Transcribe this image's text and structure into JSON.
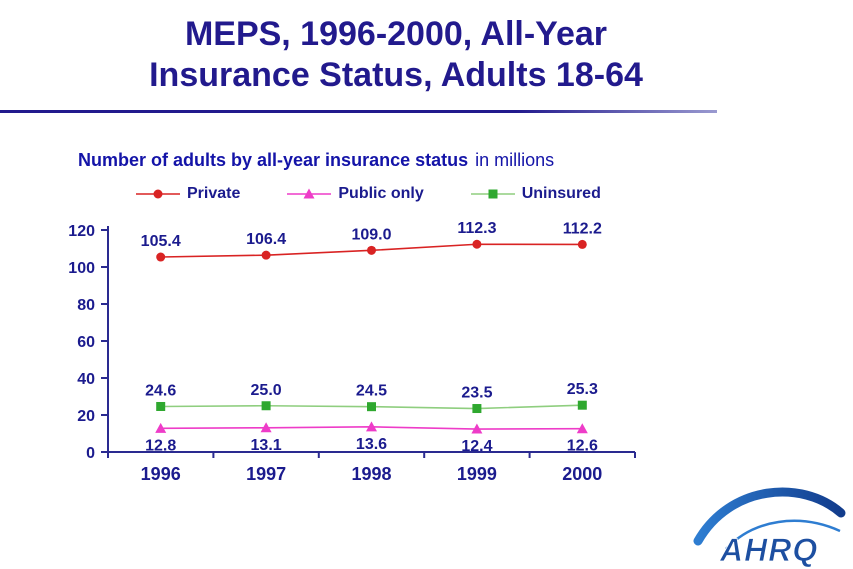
{
  "slide": {
    "title_line1": "MEPS, 1996-2000, All-Year",
    "title_line2": "Insurance Status, Adults 18-64",
    "subtitle": "Number of adults by all-year insurance status",
    "subtitle_unit": "in millions",
    "logo_text": "AHRQ"
  },
  "colors": {
    "title": "#221a8d",
    "subtitle": "#1414a8",
    "axis_text": "#1b1b8e",
    "axis_line": "#2a2a90",
    "rule_start": "#221a8d",
    "rule_end": "#9a9ad0",
    "logo_blue": "#1d4fa1",
    "logo_light": "#2e7dd1",
    "logo_dark": "#123c8c"
  },
  "chart_data": {
    "type": "line",
    "title": "Number of adults by all-year insurance status in millions",
    "categories": [
      "1996",
      "1997",
      "1998",
      "1999",
      "2000"
    ],
    "series": [
      {
        "name": "Private",
        "marker": "circle",
        "color": "#d92323",
        "line_color": "#d92323",
        "values": [
          105.4,
          106.4,
          109.0,
          112.3,
          112.2
        ],
        "label_position": "above"
      },
      {
        "name": "Public only",
        "marker": "triangle",
        "color": "#ee3cc8",
        "line_color": "#ee3cc8",
        "values": [
          12.8,
          13.1,
          13.6,
          12.4,
          12.6
        ],
        "label_position": "below"
      },
      {
        "name": "Uninsured",
        "marker": "square",
        "color": "#2fa82f",
        "line_color": "#8fce7f",
        "values": [
          24.6,
          25.0,
          24.5,
          23.5,
          25.3
        ],
        "label_position": "above"
      }
    ],
    "xlabel": "",
    "ylabel": "",
    "ylim": [
      0,
      120
    ],
    "ytick_step": 20,
    "legend_position": "top",
    "grid": false,
    "value_decimals": 1
  }
}
